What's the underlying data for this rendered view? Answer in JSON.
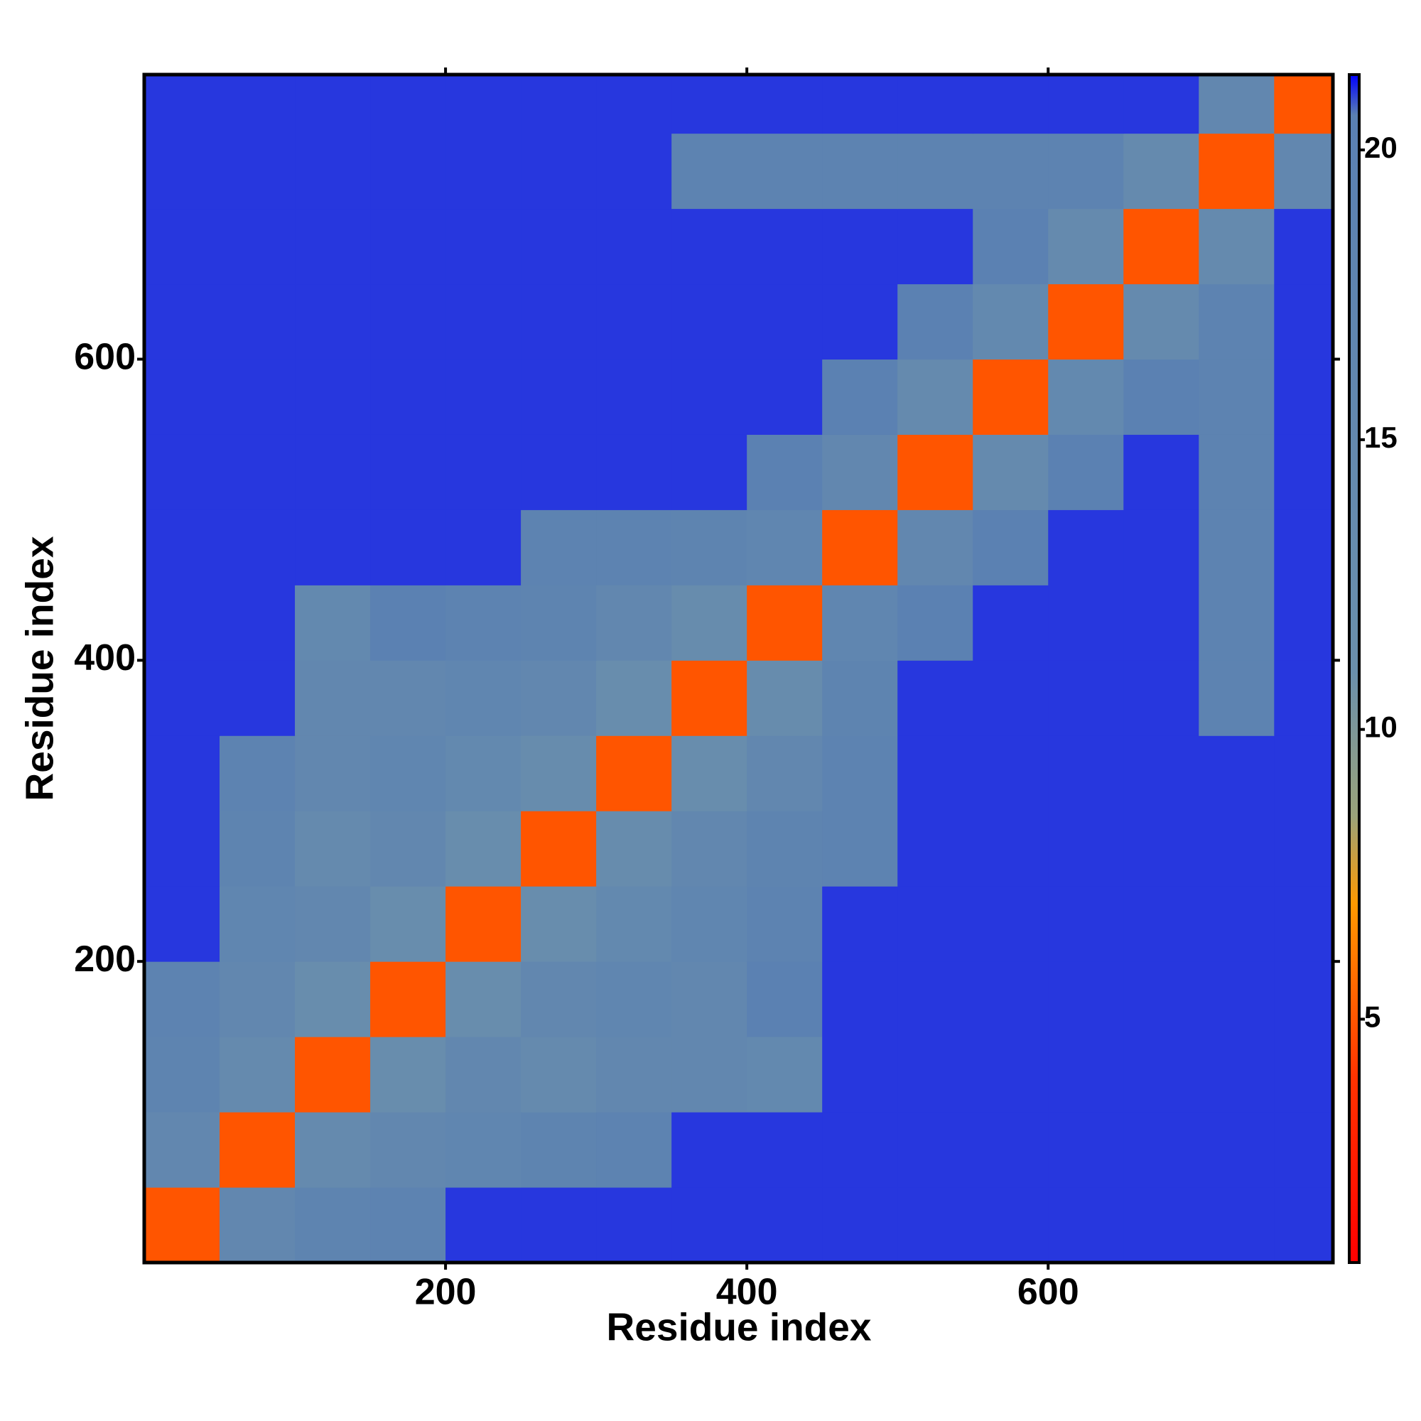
{
  "chart_data": {
    "type": "heatmap",
    "xlabel": "Residue index",
    "ylabel": "Residue index",
    "xlim": [
      0,
      789
    ],
    "ylim": [
      0,
      789
    ],
    "xticks": [
      200,
      400,
      600
    ],
    "yticks": [
      200,
      400,
      600
    ],
    "x_bins": [
      0,
      50,
      100,
      150,
      200,
      250,
      300,
      350,
      400,
      450,
      500,
      550,
      600,
      650,
      700,
      750,
      789
    ],
    "y_bins": [
      0,
      50,
      100,
      150,
      200,
      250,
      300,
      350,
      400,
      450,
      500,
      550,
      600,
      650,
      700,
      750,
      789
    ],
    "values": [
      [
        5,
        16,
        18,
        19,
        21,
        21,
        21,
        21,
        21,
        21,
        21,
        21,
        21,
        21,
        21,
        21
      ],
      [
        16,
        5,
        14,
        16,
        17,
        18,
        19,
        21,
        21,
        21,
        21,
        21,
        21,
        21,
        21,
        21
      ],
      [
        18,
        14,
        5,
        12,
        16,
        14,
        16,
        16,
        15,
        21,
        21,
        21,
        21,
        21,
        21,
        21
      ],
      [
        19,
        16,
        12,
        5,
        12,
        16,
        17,
        16,
        20,
        21,
        21,
        21,
        21,
        21,
        21,
        21
      ],
      [
        21,
        17,
        16,
        12,
        5,
        12,
        15,
        17,
        19,
        21,
        21,
        21,
        21,
        21,
        21,
        21
      ],
      [
        21,
        18,
        14,
        16,
        12,
        5,
        13,
        16,
        18,
        19,
        21,
        21,
        21,
        21,
        21,
        21
      ],
      [
        21,
        19,
        16,
        17,
        15,
        13,
        5,
        12,
        16,
        19,
        21,
        21,
        21,
        21,
        21,
        21
      ],
      [
        21,
        21,
        16,
        16,
        17,
        16,
        12,
        5,
        13,
        18,
        21,
        21,
        21,
        21,
        19,
        21
      ],
      [
        21,
        21,
        15,
        20,
        19,
        18,
        16,
        13,
        5,
        17,
        20,
        21,
        21,
        21,
        19,
        21
      ],
      [
        21,
        21,
        21,
        21,
        21,
        19,
        19,
        18,
        17,
        5,
        16,
        20,
        21,
        21,
        19,
        21
      ],
      [
        21,
        21,
        21,
        21,
        21,
        21,
        21,
        21,
        20,
        16,
        5,
        14,
        20,
        21,
        19,
        21
      ],
      [
        21,
        21,
        21,
        21,
        21,
        21,
        21,
        21,
        21,
        20,
        14,
        5,
        15,
        20,
        19,
        21
      ],
      [
        21,
        21,
        21,
        21,
        21,
        21,
        21,
        21,
        21,
        21,
        20,
        15,
        5,
        14,
        19,
        21
      ],
      [
        21,
        21,
        21,
        21,
        21,
        21,
        21,
        21,
        21,
        21,
        21,
        20,
        14,
        5,
        14,
        21
      ],
      [
        21,
        21,
        21,
        21,
        21,
        21,
        21,
        19,
        19,
        19,
        19,
        19,
        19,
        14,
        5,
        16
      ],
      [
        21,
        21,
        21,
        21,
        21,
        21,
        21,
        21,
        21,
        21,
        21,
        21,
        21,
        21,
        16,
        5
      ]
    ],
    "clim": [
      0.8,
      21.3
    ],
    "cticks": [
      5,
      10,
      15,
      20
    ],
    "colorscale": [
      [
        0.8,
        "#ff0000"
      ],
      [
        4,
        "#ff3300"
      ],
      [
        7,
        "#ff9900"
      ],
      [
        8.5,
        "#9aa37a"
      ],
      [
        11,
        "#6a8fac"
      ],
      [
        20.6,
        "#5a80b2"
      ],
      [
        21.3,
        "#0000ff"
      ]
    ]
  }
}
